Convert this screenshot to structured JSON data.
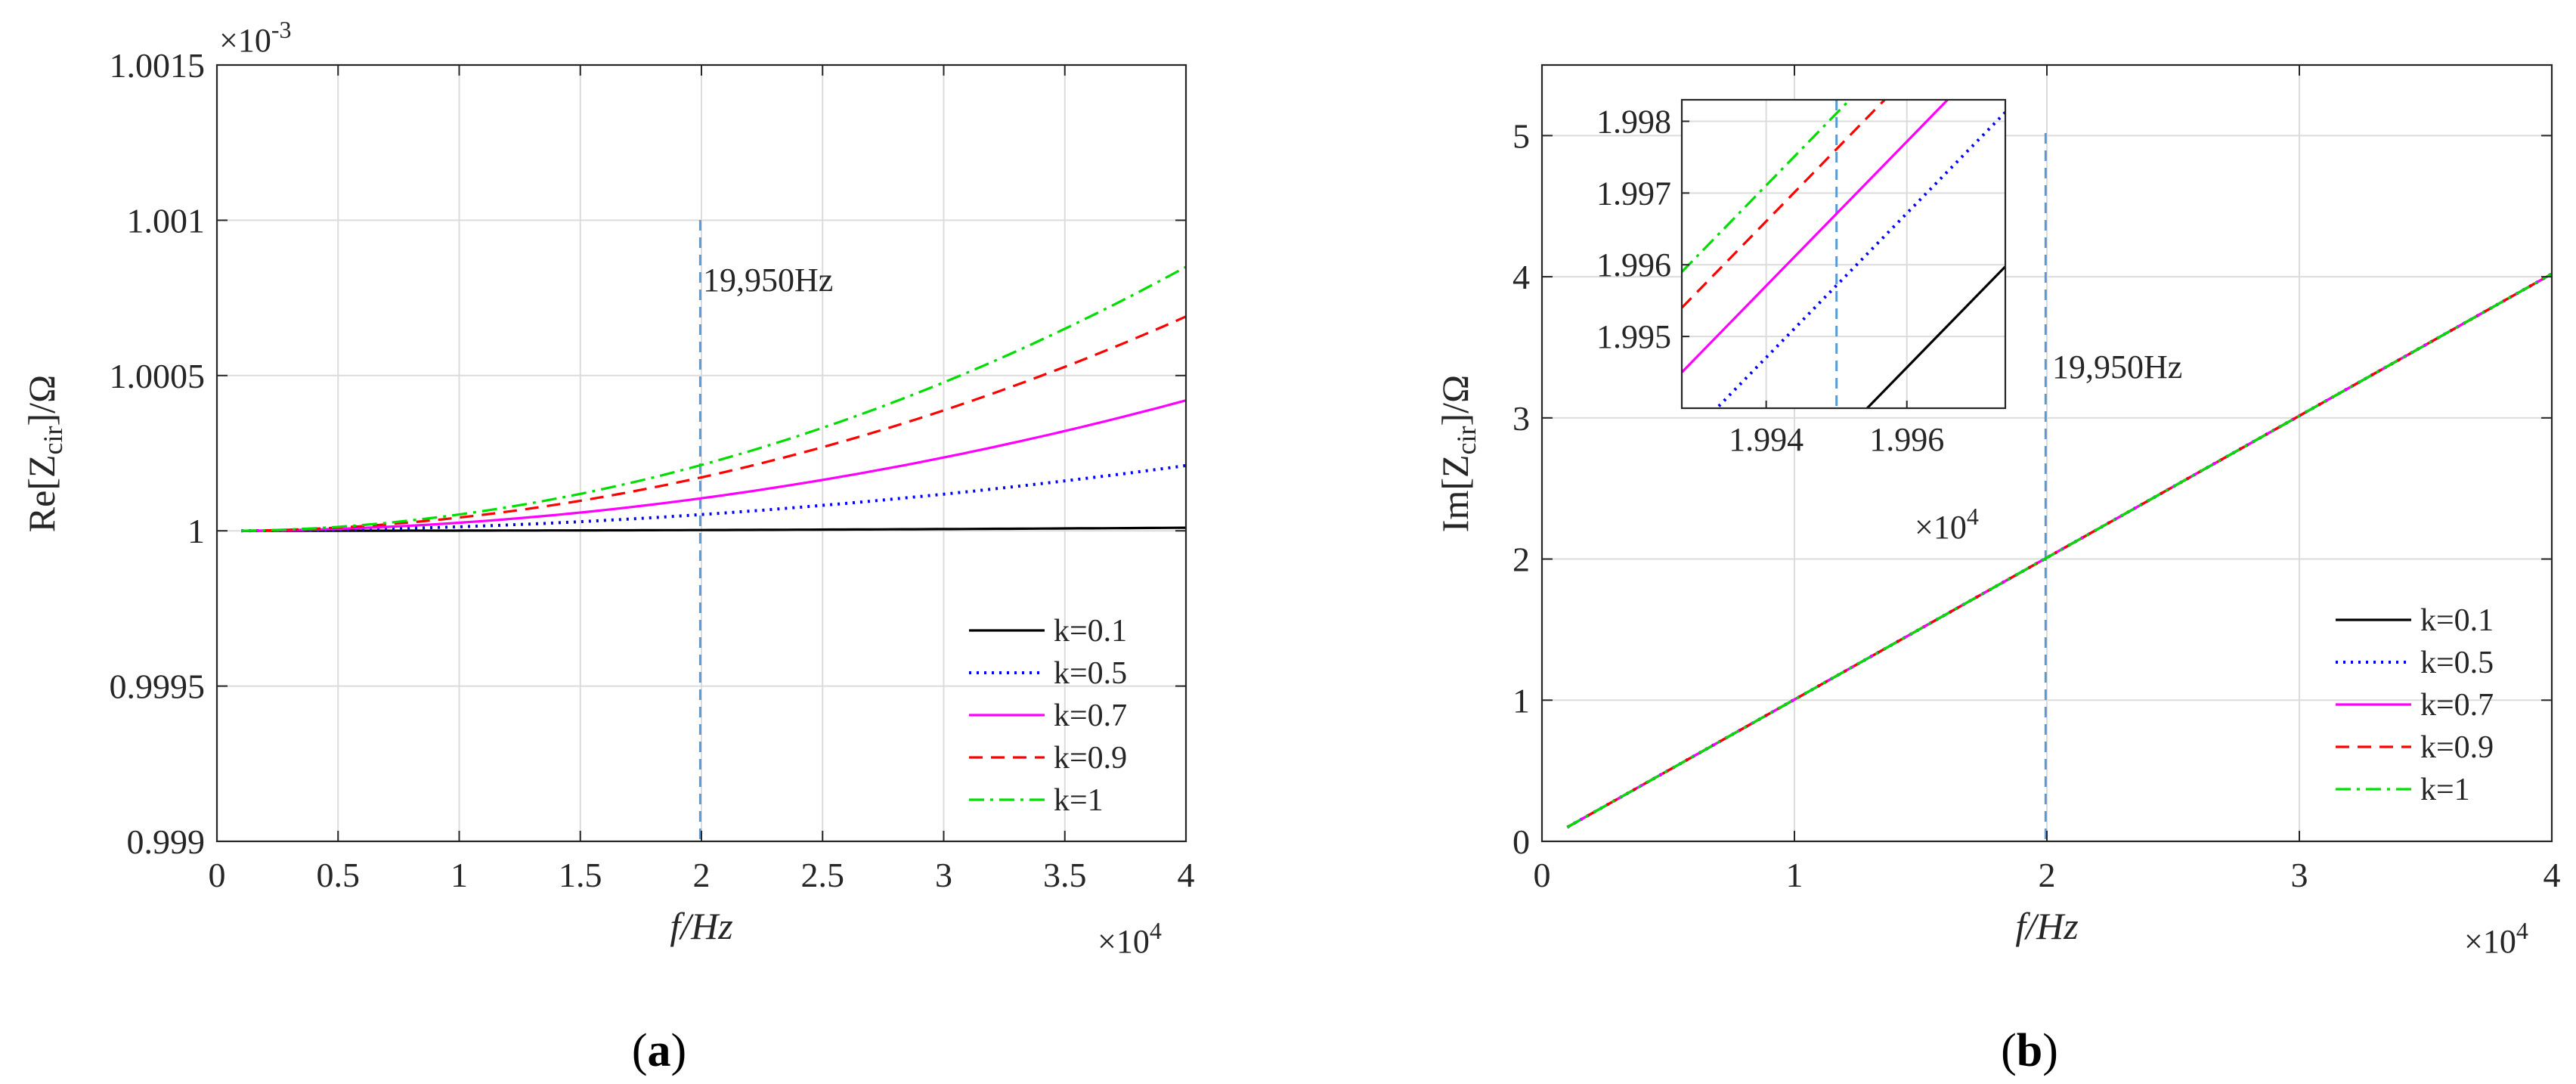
{
  "chart_data": [
    {
      "type": "line",
      "panel_label": "(a)",
      "panel_letter": "a",
      "xlabel": "f/Hz",
      "xlabel_italic": true,
      "ylabel_main": "Re[Z",
      "ylabel_sub": "cir",
      "ylabel_tail": "]/Ω",
      "x_multiplier": "×10",
      "x_multiplier_exp": "4",
      "y_multiplier": "×10",
      "y_multiplier_exp": "-3",
      "xlim": [
        0,
        4
      ],
      "ylim": [
        0.999,
        1.0015
      ],
      "xticks": [
        0,
        0.5,
        1,
        1.5,
        2,
        2.5,
        3,
        3.5,
        4
      ],
      "xtick_labels": [
        "0",
        "0.5",
        "1",
        "1.5",
        "2",
        "2.5",
        "3",
        "3.5",
        "4"
      ],
      "yticks": [
        0.999,
        0.9995,
        1,
        1.0005,
        1.001,
        1.0015
      ],
      "ytick_labels": [
        "0.999",
        "0.9995",
        "1",
        "1.0005",
        "1.001",
        "1.0015"
      ],
      "grid": true,
      "vline": {
        "x": 1.995,
        "label": "19,950Hz",
        "color": "#5b9bd5"
      },
      "x_range": [
        0.1,
        4
      ],
      "series": [
        {
          "name": "k=0.1",
          "color": "#000000",
          "dash": "solid",
          "y_at_x4": 1.00001,
          "y_start": 1.0
        },
        {
          "name": "k=0.5",
          "color": "#0000ff",
          "dash": "dotted",
          "y_at_x4": 1.00021,
          "y_start": 1.0
        },
        {
          "name": "k=0.7",
          "color": "#ff00ff",
          "dash": "solid",
          "y_at_x4": 1.00042,
          "y_start": 1.0
        },
        {
          "name": "k=0.9",
          "color": "#ff0000",
          "dash": "dashed",
          "y_at_x4": 1.00069,
          "y_start": 1.0
        },
        {
          "name": "k=1",
          "color": "#00dd00",
          "dash": "dashdot",
          "y_at_x4": 1.00085,
          "y_start": 1.0
        }
      ],
      "legend_position": "lower-right"
    },
    {
      "type": "line",
      "panel_label": "(b)",
      "panel_letter": "b",
      "xlabel": "f/Hz",
      "xlabel_italic": true,
      "ylabel_main": "Im[Z",
      "ylabel_sub": "cir",
      "ylabel_tail": "]/Ω",
      "x_multiplier": "×10",
      "x_multiplier_exp": "4",
      "xlim": [
        0,
        4
      ],
      "ylim": [
        0,
        5.5
      ],
      "xticks": [
        0,
        1,
        2,
        3,
        4
      ],
      "xtick_labels": [
        "0",
        "1",
        "2",
        "3",
        "4"
      ],
      "yticks": [
        0,
        1,
        2,
        3,
        4,
        5
      ],
      "ytick_labels": [
        "0",
        "1",
        "2",
        "3",
        "4",
        "5"
      ],
      "grid": true,
      "vline": {
        "x": 1.995,
        "label": "19,950Hz",
        "color": "#5b9bd5"
      },
      "series_line": {
        "x_start": 0.1,
        "y_start": 0.1,
        "x_end": 4,
        "y_end": 4.02
      },
      "series": [
        {
          "name": "k=0.1",
          "color": "#000000",
          "dash": "solid"
        },
        {
          "name": "k=0.5",
          "color": "#0000ff",
          "dash": "dotted"
        },
        {
          "name": "k=0.7",
          "color": "#ff00ff",
          "dash": "solid"
        },
        {
          "name": "k=0.9",
          "color": "#ff0000",
          "dash": "dashed"
        },
        {
          "name": "k=1",
          "color": "#00dd00",
          "dash": "dashdot"
        }
      ],
      "legend_position": "lower-right",
      "inset": {
        "xlim": [
          1.9928,
          1.9974
        ],
        "ylim": [
          1.994,
          1.9983
        ],
        "xticks": [
          1.994,
          1.996
        ],
        "xtick_labels": [
          "1.994",
          "1.996"
        ],
        "yticks": [
          1.995,
          1.996,
          1.997,
          1.998
        ],
        "ytick_labels": [
          "1.995",
          "1.996",
          "1.997",
          "1.998"
        ],
        "x_multiplier": "×10",
        "x_multiplier_exp": "4",
        "vline_x": 1.995,
        "slope": 1.0055,
        "offsets_at_x_1_9928": [
          1.99135,
          1.9935,
          1.9945,
          1.9954,
          1.9959
        ]
      }
    }
  ]
}
